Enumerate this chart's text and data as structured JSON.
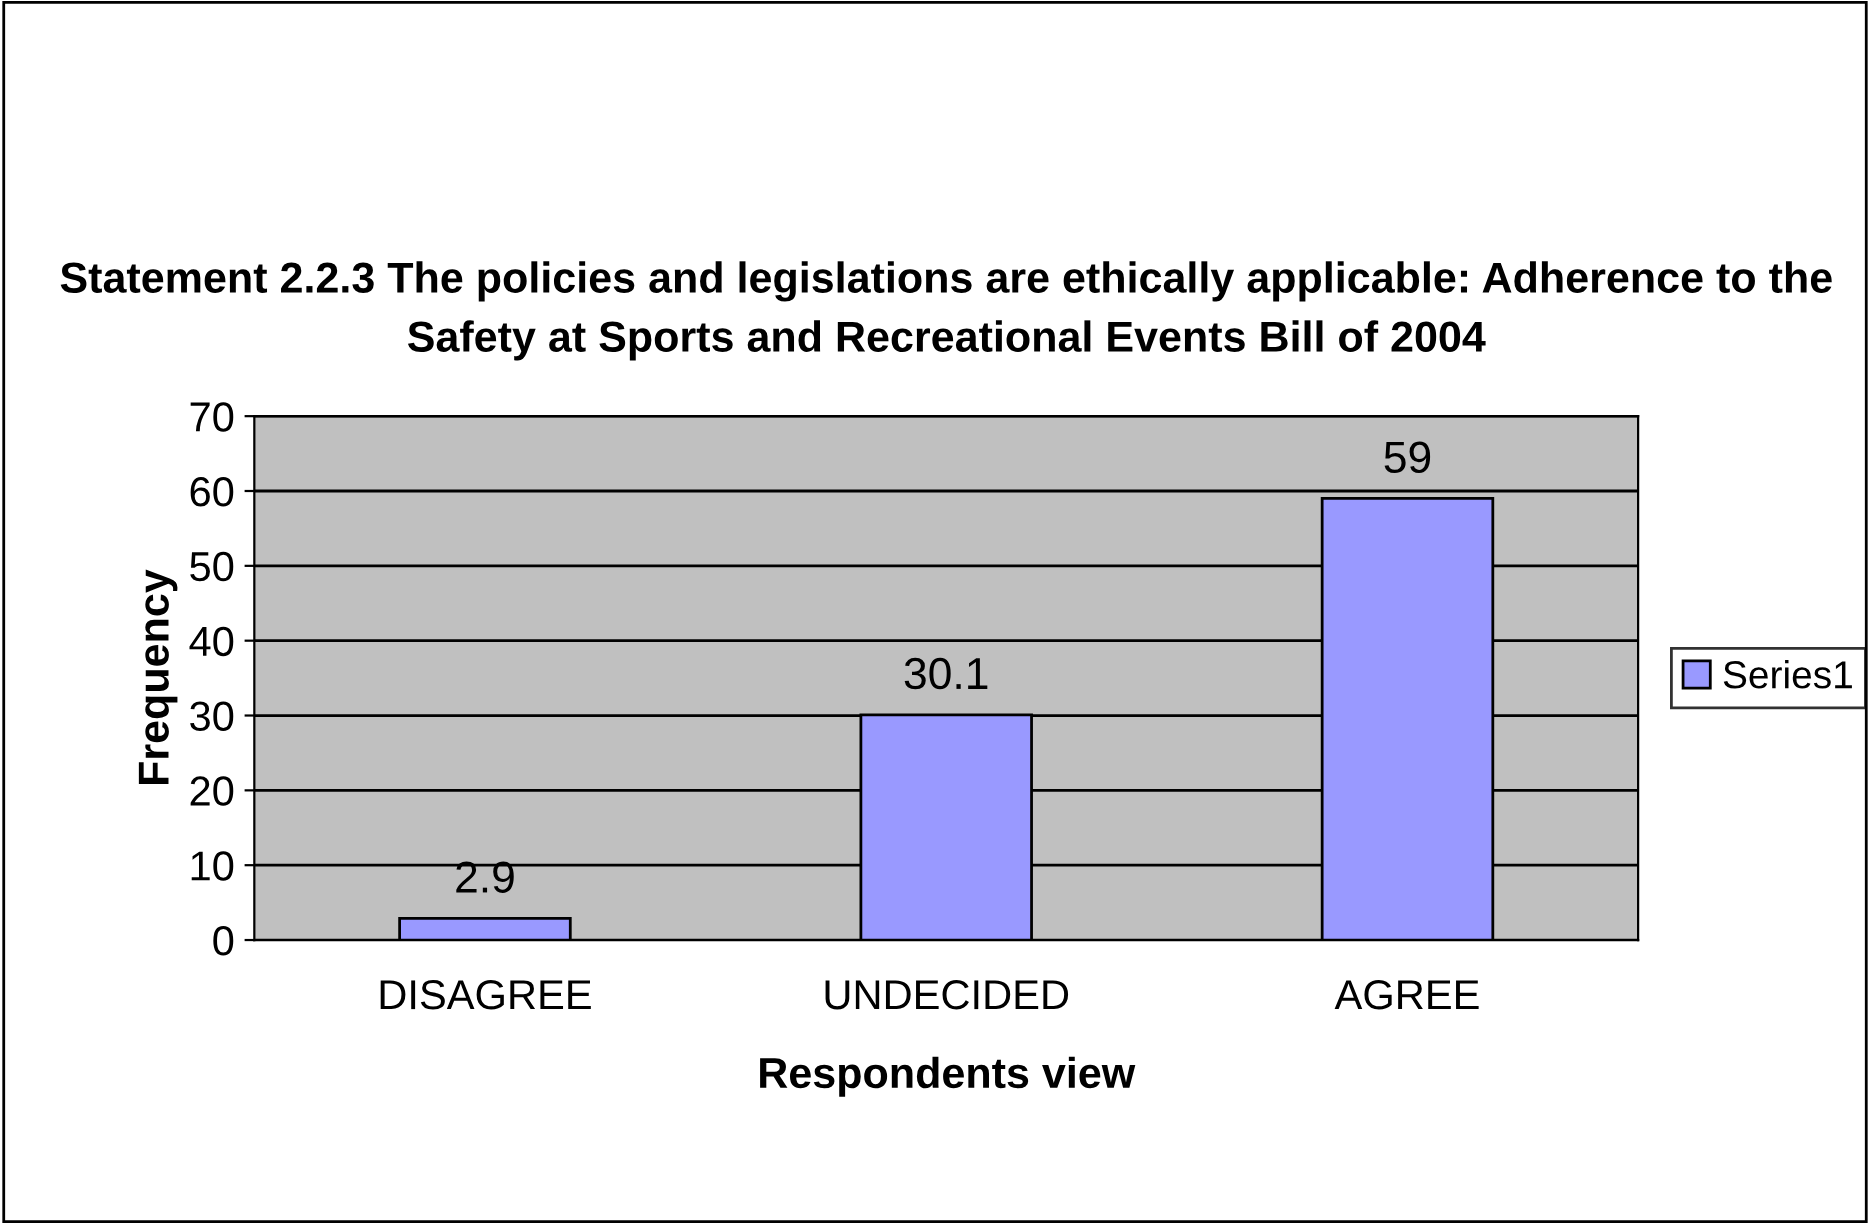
{
  "chart_data": {
    "type": "bar",
    "title": "Statement 2.2.3 The policies and legislations are ethically applicable: Adherence to the Safety at Sports and Recreational Events Bill of 2004",
    "xlabel": "Respondents view",
    "ylabel": "Frequency",
    "categories": [
      "DISAGREE",
      "UNDECIDED",
      "AGREE"
    ],
    "series": [
      {
        "name": "Series1",
        "color": "#9999ff",
        "values": [
          2.9,
          30.1,
          59
        ]
      }
    ],
    "ylim": [
      0,
      70
    ],
    "yticks": [
      0,
      10,
      20,
      30,
      40,
      50,
      60,
      70
    ],
    "grid": "y",
    "legend": "right",
    "data_labels": true
  }
}
